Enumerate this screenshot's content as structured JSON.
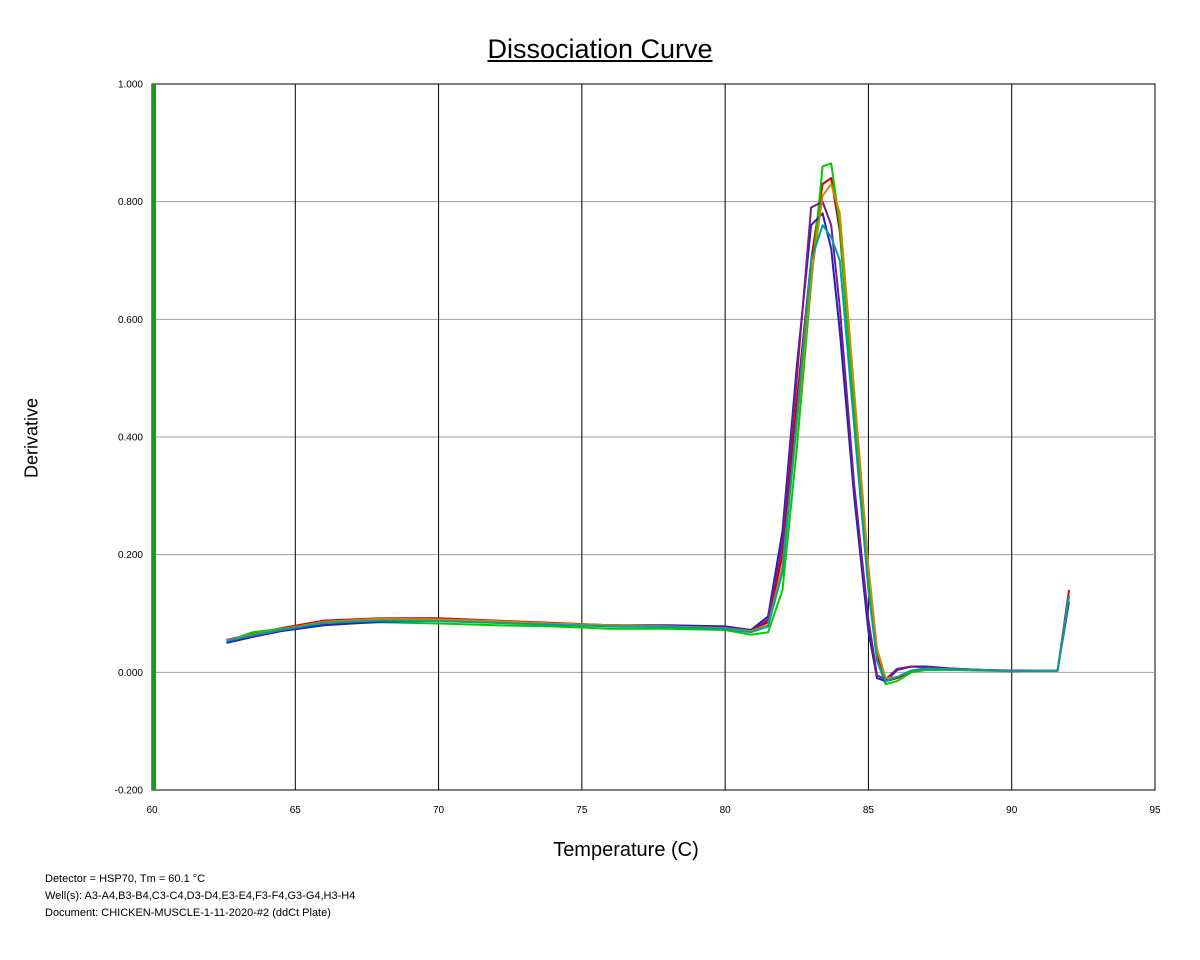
{
  "chart_data": {
    "type": "line",
    "title": "Dissociation Curve",
    "xlabel": "Temperature (C)",
    "ylabel": "Derivative",
    "xlim": [
      60,
      95
    ],
    "ylim": [
      -0.2,
      1.0
    ],
    "x_ticks": [
      "60",
      "65",
      "70",
      "75",
      "80",
      "85",
      "90",
      "95"
    ],
    "y_ticks": [
      "-0.200",
      "0.000",
      "0.200",
      "0.400",
      "0.600",
      "0.800",
      "1.000"
    ],
    "grid": true,
    "legend": "none",
    "x": [
      62.6,
      63.5,
      64.5,
      66.0,
      68.0,
      70.0,
      72.0,
      74.0,
      76.0,
      78.0,
      80.0,
      80.9,
      81.5,
      82.0,
      82.5,
      83.0,
      83.4,
      83.7,
      84.0,
      84.5,
      85.0,
      85.3,
      85.6,
      86.0,
      86.5,
      87.0,
      88.0,
      89.0,
      90.0,
      91.0,
      91.6,
      92.0
    ],
    "series": [
      {
        "color": "#cc0000",
        "values": [
          0.055,
          0.065,
          0.075,
          0.088,
          0.092,
          0.092,
          0.088,
          0.084,
          0.08,
          0.078,
          0.076,
          0.072,
          0.085,
          0.2,
          0.46,
          0.7,
          0.83,
          0.84,
          0.75,
          0.45,
          0.15,
          0.03,
          -0.015,
          -0.01,
          0.002,
          0.006,
          0.006,
          0.004,
          0.002,
          0.003,
          0.003,
          0.14
        ]
      },
      {
        "color": "#00cc00",
        "values": [
          0.052,
          0.068,
          0.074,
          0.082,
          0.085,
          0.083,
          0.08,
          0.078,
          0.074,
          0.074,
          0.072,
          0.064,
          0.068,
          0.14,
          0.38,
          0.66,
          0.86,
          0.865,
          0.76,
          0.44,
          0.16,
          0.02,
          -0.02,
          -0.015,
          0.0,
          0.004,
          0.004,
          0.003,
          0.002,
          0.003,
          0.003,
          0.13
        ]
      },
      {
        "color": "#2222bb",
        "values": [
          0.05,
          0.06,
          0.07,
          0.08,
          0.086,
          0.088,
          0.085,
          0.082,
          0.08,
          0.08,
          0.078,
          0.072,
          0.095,
          0.24,
          0.52,
          0.76,
          0.78,
          0.72,
          0.58,
          0.3,
          0.07,
          -0.01,
          -0.015,
          0.004,
          0.01,
          0.01,
          0.006,
          0.004,
          0.003,
          0.003,
          0.003,
          0.12
        ]
      },
      {
        "color": "#7a1a8c",
        "values": [
          0.055,
          0.062,
          0.072,
          0.085,
          0.09,
          0.089,
          0.086,
          0.083,
          0.08,
          0.078,
          0.076,
          0.07,
          0.09,
          0.22,
          0.5,
          0.79,
          0.8,
          0.76,
          0.62,
          0.32,
          0.09,
          -0.005,
          -0.012,
          0.006,
          0.01,
          0.008,
          0.006,
          0.004,
          0.003,
          0.003,
          0.003,
          0.13
        ]
      },
      {
        "color": "#cc8800",
        "values": [
          0.054,
          0.064,
          0.073,
          0.086,
          0.091,
          0.09,
          0.087,
          0.083,
          0.08,
          0.078,
          0.075,
          0.07,
          0.08,
          0.18,
          0.42,
          0.67,
          0.81,
          0.83,
          0.78,
          0.48,
          0.18,
          0.04,
          -0.01,
          -0.008,
          0.003,
          0.006,
          0.005,
          0.004,
          0.002,
          0.003,
          0.003,
          0.13
        ]
      },
      {
        "color": "#00a0a0",
        "values": [
          0.053,
          0.063,
          0.072,
          0.084,
          0.088,
          0.087,
          0.084,
          0.081,
          0.078,
          0.077,
          0.074,
          0.068,
          0.078,
          0.17,
          0.43,
          0.7,
          0.76,
          0.74,
          0.7,
          0.42,
          0.14,
          0.02,
          -0.015,
          -0.008,
          0.003,
          0.006,
          0.005,
          0.004,
          0.002,
          0.003,
          0.003,
          0.13
        ]
      }
    ]
  },
  "footer": {
    "line1": "Detector = HSP70, Tm = 60.1 °C",
    "line2": "Well(s): A3-A4,B3-B4,C3-C4,D3-D4,E3-E4,F3-F4,G3-G4,H3-H4",
    "line3": "Document: CHICKEN-MUSCLE-1-11-2020-#2 (ddCt Plate)"
  }
}
